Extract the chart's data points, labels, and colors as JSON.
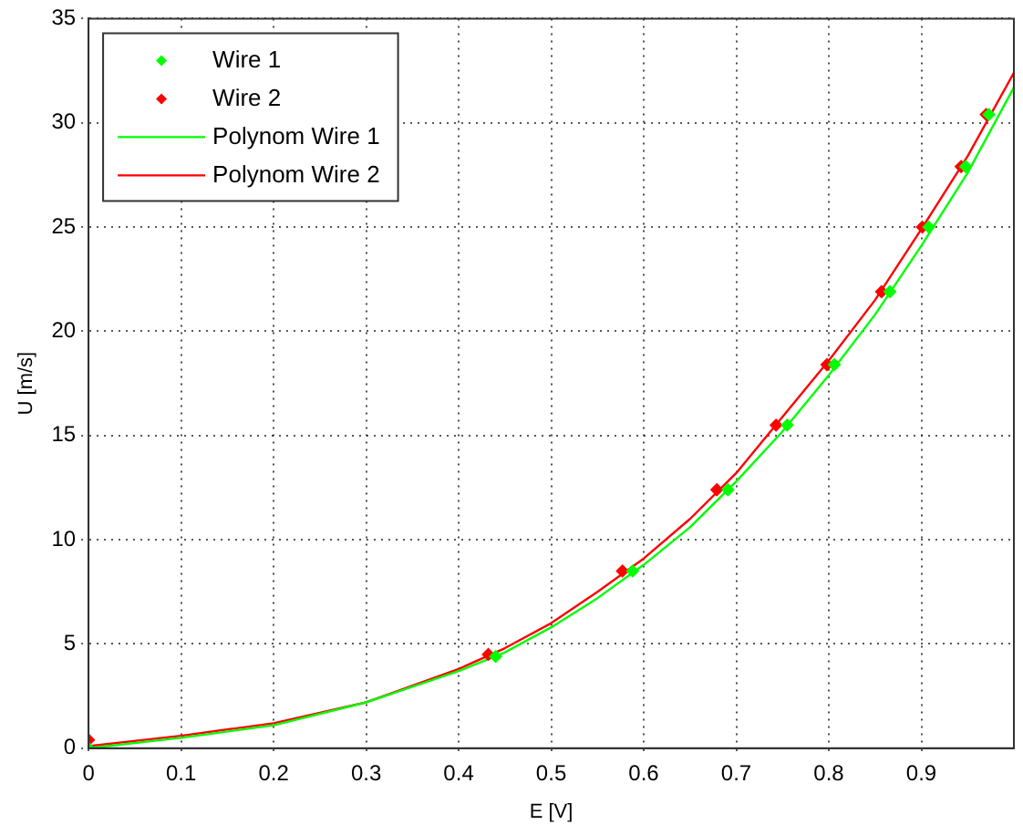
{
  "chart_data": {
    "type": "scatter",
    "xlabel": "E [V]",
    "ylabel": "U [m/s]",
    "xlim": [
      0,
      1
    ],
    "xticks": [
      0,
      0.1,
      0.2,
      0.3,
      0.4,
      0.5,
      0.6,
      0.7,
      0.8,
      0.9
    ],
    "ylim": [
      0,
      35
    ],
    "yticks": [
      0,
      5,
      10,
      15,
      20,
      25,
      30,
      35
    ],
    "grid": true,
    "legend": "top left",
    "marker": "diamond",
    "series": [
      {
        "name": "Wire 1",
        "color": "#00ff00",
        "x": [
          0,
          0.44,
          0.588,
          0.691,
          0.755,
          0.806,
          0.866,
          0.908,
          0.948,
          0.973
        ],
        "values": [
          0,
          4.4,
          8.5,
          12.4,
          15.5,
          18.4,
          21.9,
          25,
          27.9,
          30.4
        ]
      },
      {
        "name": "Wire 2",
        "color": "#ff0000",
        "x": [
          0,
          0.432,
          0.577,
          0.679,
          0.743,
          0.798,
          0.857,
          0.901,
          0.943,
          0.97
        ],
        "values": [
          0.4,
          4.5,
          8.5,
          12.4,
          15.5,
          18.4,
          21.9,
          25,
          27.9,
          30.4
        ]
      },
      {
        "name": "Polynom Wire 1",
        "type": "line",
        "marker": "none",
        "color": "#00ff00",
        "x": [
          0,
          0.1,
          0.2,
          0.3,
          0.4,
          0.45,
          0.5,
          0.55,
          0.6,
          0.65,
          0.7,
          0.75,
          0.8,
          0.85,
          0.9,
          0.95,
          1
        ],
        "values": [
          0,
          0.5,
          1.1,
          2.2,
          3.7,
          4.6,
          5.8,
          7.2,
          8.8,
          10.6,
          12.8,
          15.2,
          17.9,
          20.8,
          24.1,
          27.6,
          31.7
        ]
      },
      {
        "name": "Polynom Wire 2",
        "type": "line",
        "marker": "none",
        "color": "#ff0000",
        "x": [
          0,
          0.1,
          0.2,
          0.3,
          0.4,
          0.45,
          0.5,
          0.55,
          0.6,
          0.65,
          0.7,
          0.75,
          0.8,
          0.85,
          0.9,
          0.95,
          1
        ],
        "values": [
          0.1,
          0.6,
          1.2,
          2.2,
          3.8,
          4.8,
          6.0,
          7.5,
          9.1,
          11.0,
          13.2,
          15.9,
          18.6,
          21.5,
          24.9,
          28.4,
          32.4
        ]
      }
    ]
  }
}
